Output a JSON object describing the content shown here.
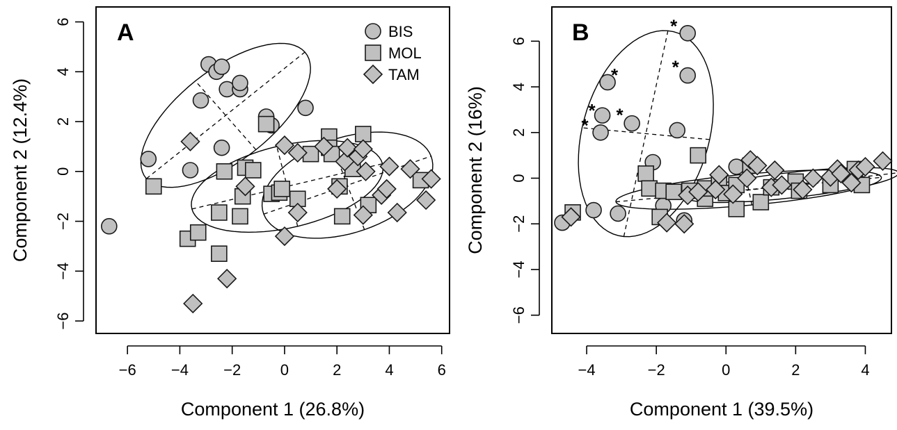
{
  "colors": {
    "marker_fill": "#c0c0c0",
    "stroke": "#1a1a1a",
    "background": "#ffffff"
  },
  "chart_data": [
    {
      "type": "scatter",
      "panel": "A",
      "xlabel": "Component 1 (26.8%)",
      "ylabel": "Component 2 (12.4%)",
      "xlim": [
        -7.2,
        6.3
      ],
      "ylim": [
        -6.5,
        6.6
      ],
      "xticks": [
        -6,
        -4,
        -2,
        0,
        2,
        4,
        6
      ],
      "yticks": [
        -6,
        -4,
        -2,
        0,
        2,
        4,
        6
      ],
      "grid": false,
      "legend": {
        "position": "top-right",
        "entries": [
          {
            "label": "BIS",
            "marker": "circle"
          },
          {
            "label": "MOL",
            "marker": "square"
          },
          {
            "label": "TAM",
            "marker": "diamond"
          }
        ]
      },
      "series": [
        {
          "name": "BIS",
          "marker": "circle",
          "points": [
            [
              -6.7,
              -2.2
            ],
            [
              -5.2,
              0.5
            ],
            [
              -3.6,
              0.05
            ],
            [
              -2.9,
              4.3
            ],
            [
              -2.6,
              4.0
            ],
            [
              -2.4,
              4.2
            ],
            [
              -3.2,
              2.85
            ],
            [
              -2.2,
              3.3
            ],
            [
              -1.7,
              3.3
            ],
            [
              -1.7,
              3.55
            ],
            [
              -2.4,
              0.95
            ],
            [
              -0.7,
              2.2
            ],
            [
              -0.5,
              1.85
            ],
            [
              0.8,
              2.55
            ]
          ]
        },
        {
          "name": "MOL",
          "marker": "square",
          "points": [
            [
              -5.0,
              -0.6
            ],
            [
              -3.7,
              -2.7
            ],
            [
              -3.3,
              -2.45
            ],
            [
              -2.5,
              -3.3
            ],
            [
              -2.5,
              -1.65
            ],
            [
              -2.3,
              0.0
            ],
            [
              -1.5,
              0.15
            ],
            [
              -1.2,
              0.05
            ],
            [
              -0.7,
              1.9
            ],
            [
              -1.6,
              -1.0
            ],
            [
              -1.7,
              -1.8
            ],
            [
              -0.5,
              -0.9
            ],
            [
              -0.2,
              -0.85
            ],
            [
              -0.1,
              -0.7
            ],
            [
              0.5,
              -1.1
            ],
            [
              1.0,
              0.7
            ],
            [
              1.7,
              1.4
            ],
            [
              1.7,
              0.95
            ],
            [
              2.1,
              -0.6
            ],
            [
              1.8,
              0.7
            ],
            [
              2.2,
              -1.8
            ],
            [
              2.6,
              0.1
            ],
            [
              3.0,
              1.5
            ],
            [
              3.2,
              -1.35
            ],
            [
              5.2,
              -0.35
            ]
          ]
        },
        {
          "name": "TAM",
          "marker": "diamond",
          "points": [
            [
              -3.6,
              1.2
            ],
            [
              -3.5,
              -5.3
            ],
            [
              -2.2,
              -4.3
            ],
            [
              -1.5,
              -0.6
            ],
            [
              0.0,
              1.05
            ],
            [
              0.5,
              0.75
            ],
            [
              0.5,
              -1.65
            ],
            [
              0.0,
              -2.6
            ],
            [
              1.5,
              1.0
            ],
            [
              2.0,
              -0.7
            ],
            [
              2.3,
              0.4
            ],
            [
              2.4,
              0.95
            ],
            [
              2.8,
              0.6
            ],
            [
              3.0,
              0.9
            ],
            [
              3.1,
              0.0
            ],
            [
              3.0,
              -1.75
            ],
            [
              3.7,
              -0.95
            ],
            [
              3.9,
              -0.7
            ],
            [
              4.0,
              0.2
            ],
            [
              4.3,
              -1.65
            ],
            [
              4.8,
              0.1
            ],
            [
              5.4,
              -1.15
            ],
            [
              5.6,
              -0.3
            ]
          ]
        }
      ],
      "ellipses": [
        {
          "group": "BIS",
          "center": [
            -2.25,
            2.25
          ],
          "a": 3.95,
          "b": 1.8,
          "angle_deg": 40
        },
        {
          "group": "MOL",
          "center": [
            0.1,
            -0.6
          ],
          "a": 3.75,
          "b": 1.65,
          "angle_deg": 14
        },
        {
          "group": "TAM",
          "center": [
            2.4,
            -0.55
          ],
          "a": 3.4,
          "b": 1.9,
          "angle_deg": 20
        }
      ]
    },
    {
      "type": "scatter",
      "panel": "B",
      "xlabel": "Component 1 (39.5%)",
      "ylabel": "Component 2 (16%)",
      "xlim": [
        -5.0,
        4.75
      ],
      "ylim": [
        -6.8,
        7.5
      ],
      "xticks": [
        -4,
        -2,
        0,
        2,
        4
      ],
      "yticks": [
        -6,
        -4,
        -2,
        0,
        2,
        4,
        6
      ],
      "grid": false,
      "annotations": [
        {
          "text": "*",
          "x": -4.05,
          "y": 2.35
        },
        {
          "text": "*",
          "x": -3.85,
          "y": 3.0
        },
        {
          "text": "*",
          "x": -3.05,
          "y": 2.8
        },
        {
          "text": "*",
          "x": -3.2,
          "y": 4.55
        },
        {
          "text": "*",
          "x": -1.5,
          "y": 6.7
        },
        {
          "text": "*",
          "x": -1.45,
          "y": 4.9
        }
      ],
      "series": [
        {
          "name": "BIS",
          "marker": "circle",
          "points": [
            [
              -4.7,
              -1.95
            ],
            [
              -3.8,
              -1.4
            ],
            [
              -3.4,
              4.2
            ],
            [
              -3.55,
              2.75
            ],
            [
              -3.6,
              2.0
            ],
            [
              -2.7,
              2.4
            ],
            [
              -2.1,
              0.7
            ],
            [
              -3.1,
              -1.55
            ],
            [
              -1.8,
              -1.2
            ],
            [
              -1.4,
              2.1
            ],
            [
              -1.1,
              6.35
            ],
            [
              -1.1,
              4.5
            ],
            [
              -1.2,
              -1.85
            ],
            [
              0.3,
              0.5
            ]
          ]
        },
        {
          "name": "MOL",
          "marker": "square",
          "points": [
            [
              -4.4,
              -1.5
            ],
            [
              -2.3,
              0.2
            ],
            [
              -2.2,
              -0.45
            ],
            [
              -1.9,
              -1.7
            ],
            [
              -1.8,
              -0.55
            ],
            [
              -1.5,
              -0.6
            ],
            [
              -1.05,
              -0.55
            ],
            [
              -0.8,
              1.0
            ],
            [
              -0.6,
              -0.9
            ],
            [
              -0.6,
              -0.45
            ],
            [
              -0.2,
              -0.25
            ],
            [
              0.0,
              -0.65
            ],
            [
              0.3,
              -1.35
            ],
            [
              0.3,
              -0.3
            ],
            [
              0.7,
              0.55
            ],
            [
              1.0,
              -1.05
            ],
            [
              1.3,
              -0.4
            ],
            [
              2.0,
              -0.15
            ],
            [
              2.1,
              -0.55
            ],
            [
              3.0,
              -0.3
            ],
            [
              3.7,
              0.4
            ],
            [
              3.9,
              -0.3
            ]
          ]
        },
        {
          "name": "TAM",
          "marker": "diamond",
          "points": [
            [
              -4.45,
              -1.7
            ],
            [
              -1.7,
              -1.95
            ],
            [
              -1.2,
              -2.0
            ],
            [
              -1.1,
              -0.75
            ],
            [
              -0.8,
              -0.6
            ],
            [
              -0.3,
              -0.5
            ],
            [
              -0.2,
              0.15
            ],
            [
              0.2,
              -0.7
            ],
            [
              0.6,
              0.0
            ],
            [
              0.7,
              0.8
            ],
            [
              0.9,
              0.55
            ],
            [
              1.3,
              -0.4
            ],
            [
              1.4,
              0.35
            ],
            [
              1.6,
              -0.3
            ],
            [
              2.2,
              -0.5
            ],
            [
              2.5,
              0.0
            ],
            [
              3.0,
              0.05
            ],
            [
              3.2,
              0.4
            ],
            [
              3.3,
              0.2
            ],
            [
              3.6,
              -0.2
            ],
            [
              3.8,
              0.35
            ],
            [
              4.0,
              0.5
            ],
            [
              4.5,
              0.75
            ]
          ]
        }
      ],
      "ellipses": [
        {
          "group": "BIS",
          "center": [
            -2.3,
            1.95
          ],
          "a": 4.55,
          "b": 1.85,
          "angle_deg": 82
        },
        {
          "group": "MOL",
          "center": [
            0.65,
            -0.5
          ],
          "a": 3.85,
          "b": 0.68,
          "angle_deg": 8
        },
        {
          "group": "TAM",
          "center": [
            1.9,
            -0.3
          ],
          "a": 3.1,
          "b": 0.55,
          "angle_deg": 10
        }
      ]
    }
  ]
}
